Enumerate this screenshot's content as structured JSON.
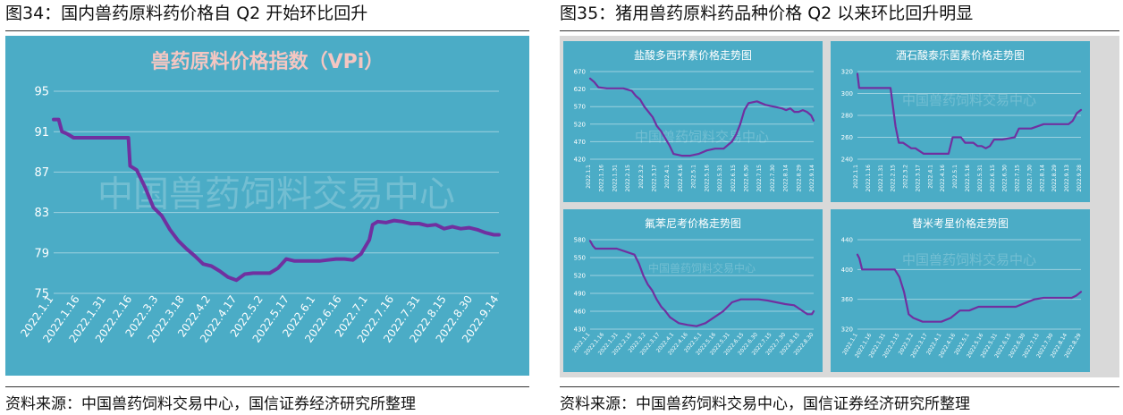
{
  "figures": [
    {
      "title": "图34：国内兽药原料药价格自 Q2 开始环比回升",
      "source": "资料来源：中国兽药饲料交易中心，国信证券经济研究所整理"
    },
    {
      "title": "图35：猪用兽药原料药品种价格 Q2 以来环比回升明显",
      "source": "资料来源：中国兽药饲料交易中心，国信证券经济研究所整理"
    }
  ],
  "colors": {
    "panel": "#4BACC6",
    "line": "#7030A0",
    "text": "#ffffff",
    "title_text": "#F4C6C2",
    "outer_bg": "#D9D9D9"
  },
  "chart_data": [
    {
      "type": "line",
      "title": "兽药原料价格指数（VPi）",
      "watermark": "中国兽药饲料交易中心",
      "yticks": [
        95,
        91,
        87,
        83,
        79,
        75
      ],
      "ylim": [
        75,
        95
      ],
      "xticks": [
        "2022.1.1",
        "2022.1.16",
        "2022.1.31",
        "2022.2.16",
        "2022.3.3",
        "2022.3.18",
        "2022.4.2",
        "2022.4.17",
        "2022.5.2",
        "2022.5.17",
        "2022.6.1",
        "2022.6.16",
        "2022.7.1",
        "2022.7.16",
        "2022.7.31",
        "2022.8.15",
        "2022.8.30",
        "2022.9.14"
      ],
      "xlim": [
        0,
        268
      ],
      "x": [
        0,
        3,
        5,
        8,
        12,
        15,
        20,
        25,
        30,
        35,
        40,
        45,
        46,
        50,
        55,
        60,
        65,
        70,
        75,
        80,
        85,
        90,
        95,
        100,
        105,
        110,
        115,
        120,
        125,
        130,
        135,
        140,
        145,
        150,
        155,
        160,
        165,
        170,
        175,
        180,
        185,
        190,
        192,
        195,
        200,
        205,
        210,
        215,
        220,
        225,
        230,
        235,
        240,
        245,
        250,
        255,
        260,
        265,
        268
      ],
      "y": [
        92.2,
        92.2,
        91,
        90.8,
        90.4,
        90.4,
        90.4,
        90.4,
        90.4,
        90.4,
        90.4,
        90.4,
        87.6,
        87.2,
        85.5,
        83.5,
        82.7,
        81.3,
        80.2,
        79.4,
        78.7,
        77.9,
        77.7,
        77.2,
        76.6,
        76.3,
        76.9,
        77.0,
        77.0,
        77.0,
        77.5,
        78.4,
        78.2,
        78.2,
        78.2,
        78.2,
        78.3,
        78.4,
        78.4,
        78.3,
        78.9,
        80.3,
        81.8,
        82.1,
        82.0,
        82.2,
        82.1,
        81.9,
        81.9,
        81.7,
        81.8,
        81.4,
        81.6,
        81.4,
        81.5,
        81.3,
        81.0,
        80.8,
        80.8
      ]
    },
    {
      "type": "line",
      "title": "盐酸多西环素价格走势图",
      "watermark": "中国兽药饲料交易中心",
      "yticks": [
        670,
        620,
        570,
        520,
        470,
        420
      ],
      "ylim": [
        420,
        670
      ],
      "xticks": [
        "2022.1.1",
        "2022.1.16",
        "2022.1.31",
        "2022.2.15",
        "2022.3.2",
        "2022.3.17",
        "2022.4.1",
        "2022.4.16",
        "2022.5.1",
        "2022.5.16",
        "2022.5.31",
        "2022.6.15",
        "2022.6.30",
        "2022.7.15",
        "2022.7.30",
        "2022.8.14",
        "2022.8.29",
        "2022.9.14"
      ],
      "xlim": [
        0,
        268
      ],
      "x": [
        0,
        5,
        10,
        20,
        30,
        40,
        50,
        55,
        60,
        65,
        70,
        75,
        80,
        85,
        90,
        95,
        100,
        110,
        120,
        130,
        140,
        150,
        160,
        165,
        170,
        175,
        180,
        185,
        190,
        200,
        210,
        220,
        230,
        235,
        240,
        245,
        250,
        255,
        260,
        265,
        268
      ],
      "y": [
        650,
        640,
        625,
        622,
        622,
        622,
        615,
        600,
        590,
        570,
        555,
        540,
        515,
        500,
        480,
        460,
        435,
        430,
        430,
        435,
        445,
        450,
        450,
        460,
        470,
        490,
        520,
        560,
        580,
        585,
        575,
        570,
        565,
        560,
        565,
        555,
        555,
        560,
        555,
        545,
        530
      ]
    },
    {
      "type": "line",
      "title": "酒石酸泰乐菌素价格走势图",
      "watermark": "中国兽药饲料交易中心",
      "yticks": [
        320,
        300,
        280,
        260,
        240
      ],
      "ylim": [
        240,
        320
      ],
      "xticks": [
        "2022.1.1",
        "2022.1.16",
        "2022.1.31",
        "2022.2.15",
        "2022.3.2",
        "2022.3.17",
        "2022.4.1",
        "2022.4.16",
        "2022.5.1",
        "2022.5.16",
        "2022.5.31",
        "2022.6.15",
        "2022.6.30",
        "2022.7.15",
        "2022.7.30",
        "2022.8.14",
        "2022.8.29",
        "2022.9.13",
        "2022.9.28"
      ],
      "xlim": [
        0,
        270
      ],
      "x": [
        0,
        2,
        5,
        20,
        40,
        46,
        50,
        55,
        65,
        70,
        80,
        90,
        95,
        110,
        115,
        125,
        130,
        140,
        145,
        150,
        155,
        160,
        165,
        175,
        190,
        195,
        210,
        225,
        240,
        255,
        260,
        265,
        270
      ],
      "y": [
        318,
        305,
        305,
        305,
        305,
        270,
        255,
        255,
        250,
        250,
        245,
        245,
        245,
        245,
        260,
        260,
        255,
        255,
        252,
        252,
        250,
        252,
        258,
        258,
        260,
        268,
        268,
        272,
        272,
        272,
        275,
        282,
        285
      ]
    },
    {
      "type": "line",
      "title": "氟苯尼考价格走势图",
      "watermark": "中国兽药饲料交易中心",
      "yticks": [
        580,
        550,
        520,
        490,
        460,
        430
      ],
      "ylim": [
        430,
        580
      ],
      "xticks": [
        "2022.1.1",
        "2022.1.16",
        "2022.1.31",
        "2022.2.15",
        "2022.3.2",
        "2022.3.17",
        "2022.4.1",
        "2022.4.16",
        "2022.5.1",
        "2022.5.16",
        "2022.5.31",
        "2022.6.15",
        "2022.6.30",
        "2022.7.15",
        "2022.7.30",
        "2022.8.15",
        "2022.8.30"
      ],
      "xlim": [
        0,
        252
      ],
      "x": [
        0,
        3,
        6,
        10,
        20,
        30,
        40,
        50,
        55,
        60,
        65,
        70,
        75,
        80,
        85,
        90,
        95,
        100,
        110,
        120,
        130,
        140,
        150,
        160,
        170,
        180,
        190,
        200,
        210,
        220,
        230,
        240,
        245,
        250,
        252
      ],
      "y": [
        578,
        570,
        565,
        565,
        565,
        565,
        560,
        555,
        540,
        520,
        505,
        495,
        480,
        468,
        460,
        450,
        445,
        440,
        437,
        435,
        440,
        450,
        460,
        475,
        480,
        480,
        480,
        478,
        475,
        472,
        470,
        460,
        455,
        455,
        460
      ]
    },
    {
      "type": "line",
      "title": "替米考星价格走势图",
      "watermark": "中国兽药饲料交易中心",
      "yticks": [
        440,
        400,
        360,
        320
      ],
      "ylim": [
        320,
        440
      ],
      "xticks": [
        "2022.1.1",
        "2022.1.16",
        "2022.1.31",
        "2022.2.15",
        "2022.3.2",
        "2022.3.17",
        "2022.4.1",
        "2022.4.16",
        "2022.5.1",
        "2022.5.16",
        "2022.5.31",
        "2022.6.15",
        "2022.6.30",
        "2022.7.15",
        "2022.7.30",
        "2022.8.14",
        "2022.8.29"
      ],
      "xlim": [
        0,
        240
      ],
      "x": [
        0,
        2,
        5,
        20,
        40,
        45,
        50,
        55,
        60,
        70,
        80,
        90,
        100,
        110,
        120,
        130,
        140,
        150,
        160,
        170,
        180,
        190,
        200,
        210,
        220,
        230,
        235,
        240
      ],
      "y": [
        420,
        415,
        400,
        400,
        400,
        390,
        370,
        340,
        335,
        330,
        330,
        330,
        335,
        345,
        345,
        350,
        350,
        350,
        350,
        350,
        355,
        360,
        362,
        362,
        362,
        362,
        365,
        370
      ]
    }
  ]
}
